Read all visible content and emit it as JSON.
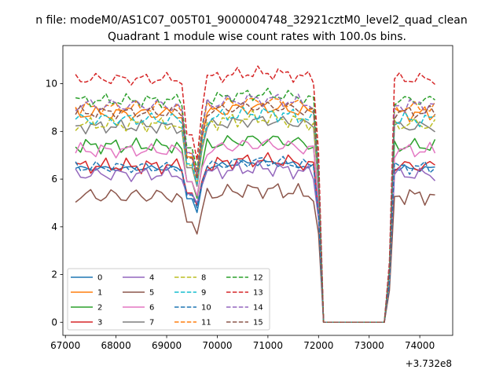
{
  "figure": {
    "suptitle": "n file: modeM0/AS1C07_005T01_9000004748_32921cztM0_level2_quad_clean",
    "title": "Quadrant 1 module wise count rates with 100.0s bins.",
    "x_offset_label": "+3.732e8"
  },
  "chart_data": {
    "type": "line",
    "title": "Quadrant 1 module wise count rates with 100.0s bins.",
    "xlabel": "",
    "ylabel": "",
    "x_offset": 373200000,
    "xlim": [
      66950,
      74650
    ],
    "ylim": [
      -0.55,
      11.6
    ],
    "xticks": [
      67000,
      68000,
      69000,
      70000,
      71000,
      72000,
      73000,
      74000
    ],
    "yticks": [
      0,
      2,
      4,
      6,
      8,
      10
    ],
    "xtick_labels": [
      "67000",
      "68000",
      "69000",
      "70000",
      "71000",
      "72000",
      "73000",
      "74000"
    ],
    "ytick_labels": [
      "0",
      "2",
      "4",
      "6",
      "8",
      "10"
    ],
    "grid": false,
    "legend_position": "lower-left",
    "legend_columns": 4,
    "x_start": 67200,
    "x_step": 100,
    "x_end": 74350,
    "gap": {
      "from": 72100,
      "to": 73350,
      "value": 0
    },
    "dip_times": [
      69450,
      69600
    ],
    "series": [
      {
        "name": "0",
        "color": "#1f77b4",
        "style": "solid",
        "level": 6.45,
        "amp": 0.15,
        "dip": 4.6
      },
      {
        "name": "1",
        "color": "#ff7f0e",
        "style": "solid",
        "level": 8.75,
        "amp": 0.35,
        "dip": 6.1
      },
      {
        "name": "2",
        "color": "#2ca02c",
        "style": "solid",
        "level": 7.4,
        "amp": 0.35,
        "dip": 5.2
      },
      {
        "name": "3",
        "color": "#d62728",
        "style": "solid",
        "level": 6.55,
        "amp": 0.35,
        "dip": 4.9
      },
      {
        "name": "4",
        "color": "#9467bd",
        "style": "solid",
        "level": 6.2,
        "amp": 0.35,
        "dip": 5.0
      },
      {
        "name": "5",
        "color": "#8c564b",
        "style": "solid",
        "level": 5.3,
        "amp": 0.4,
        "dip": 3.7
      },
      {
        "name": "6",
        "color": "#e377c2",
        "style": "solid",
        "level": 7.2,
        "amp": 0.35,
        "dip": 5.3
      },
      {
        "name": "7",
        "color": "#7f7f7f",
        "style": "solid",
        "level": 8.2,
        "amp": 0.3,
        "dip": 5.7
      },
      {
        "name": "8",
        "color": "#bcbd22",
        "style": "dashed",
        "level": 8.3,
        "amp": 0.35,
        "dip": 5.8
      },
      {
        "name": "9",
        "color": "#17becf",
        "style": "dashed",
        "level": 8.5,
        "amp": 0.35,
        "dip": 5.8
      },
      {
        "name": "10",
        "color": "#1f77b4",
        "style": "dashed",
        "level": 6.5,
        "amp": 0.3,
        "dip": 4.8
      },
      {
        "name": "11",
        "color": "#ff7f0e",
        "style": "dashed",
        "level": 9.0,
        "amp": 0.3,
        "dip": 6.2
      },
      {
        "name": "12",
        "color": "#2ca02c",
        "style": "dashed",
        "level": 9.3,
        "amp": 0.3,
        "dip": 6.4
      },
      {
        "name": "13",
        "color": "#d62728",
        "style": "dashed",
        "level": 10.2,
        "amp": 0.3,
        "dip": 6.8
      },
      {
        "name": "14",
        "color": "#9467bd",
        "style": "dashed",
        "level": 9.1,
        "amp": 0.35,
        "dip": 6.2
      },
      {
        "name": "15",
        "color": "#8c564b",
        "style": "dashed",
        "level": 8.8,
        "amp": 0.3,
        "dip": 6.0
      }
    ]
  }
}
